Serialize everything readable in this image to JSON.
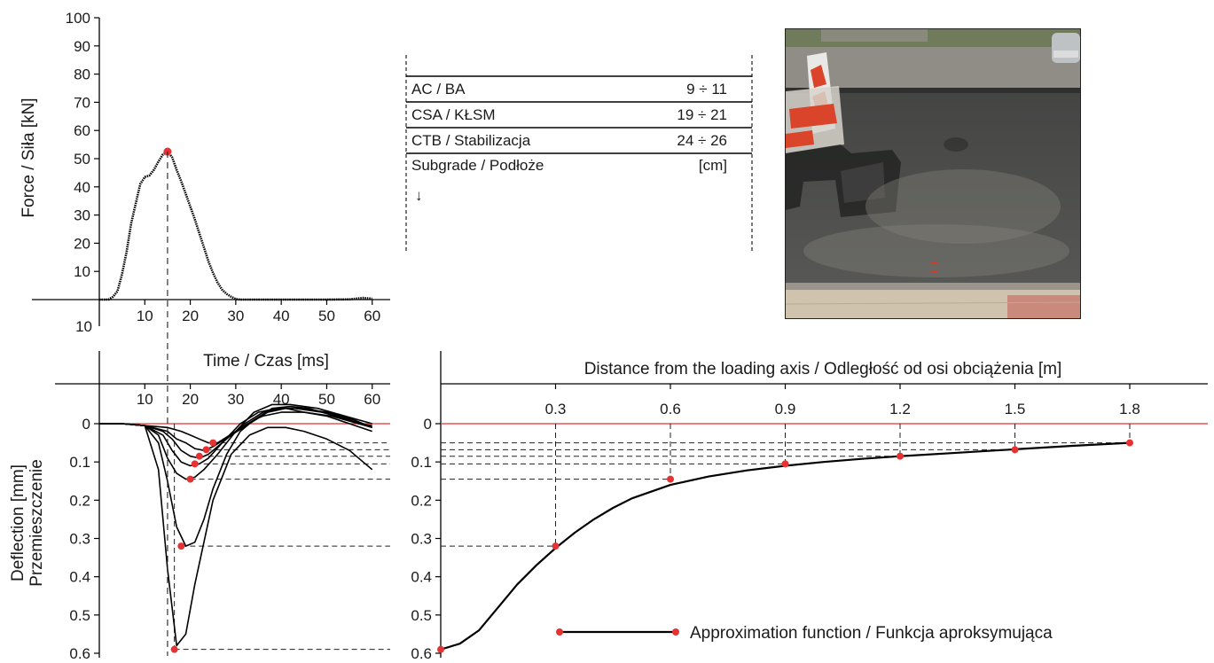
{
  "chart_data": [
    {
      "type": "line",
      "ylabel": "Force / Siła [kN]",
      "xlabel": "Time / Czas [ms]",
      "ylim": [
        -10,
        100
      ],
      "xlim": [
        0,
        62
      ],
      "yticks": [
        100,
        90,
        80,
        70,
        60,
        50,
        40,
        30,
        20,
        10
      ],
      "ytick_below": "10",
      "xticks": [
        10,
        20,
        30,
        40,
        50,
        60
      ],
      "series": [
        {
          "x": [
            0,
            2,
            3,
            4,
            5,
            6,
            7,
            8,
            9,
            10,
            11,
            12,
            13,
            14,
            15,
            16,
            17,
            18,
            19,
            20,
            21,
            22,
            23,
            24,
            25,
            26,
            27,
            28,
            29,
            30,
            31,
            32,
            35,
            40,
            45,
            50,
            55,
            58,
            60
          ],
          "y": [
            0,
            0,
            1,
            3,
            9,
            17,
            27,
            34,
            41,
            43.5,
            44,
            46,
            49,
            51.5,
            52.5,
            50.5,
            46,
            42,
            37.5,
            33,
            28.5,
            23.5,
            18.5,
            13.5,
            9.5,
            6,
            3.5,
            2,
            1,
            0.2,
            0,
            0,
            0,
            0,
            0,
            0,
            0.1,
            0.6,
            0.3
          ]
        }
      ],
      "peak": {
        "x": 15,
        "y": 52.5
      }
    },
    {
      "type": "line",
      "ylabel_line1": "Deflection [mm]",
      "ylabel_line2": "Przemieszczenie",
      "ylim": [
        0.6,
        -0.03
      ],
      "xlim": [
        0,
        62
      ],
      "yticks": [
        "0",
        "0.1",
        "0.2",
        "0.3",
        "0.4",
        "0.5",
        "0.6"
      ],
      "xticks": [
        10,
        20,
        30,
        40,
        50,
        60
      ],
      "series": [
        {
          "x": [
            0,
            5,
            10,
            13,
            15,
            17,
            19,
            21,
            25,
            29,
            33,
            37,
            41,
            45,
            50,
            55,
            60
          ],
          "y": [
            0,
            0,
            0.005,
            0.12,
            0.38,
            0.58,
            0.55,
            0.42,
            0.2,
            0.08,
            0.03,
            0.01,
            0.01,
            0.02,
            0.04,
            0.07,
            0.12
          ]
        },
        {
          "x": [
            0,
            5,
            10,
            13,
            15,
            17,
            19,
            21,
            23,
            25,
            28,
            31,
            34,
            36,
            40,
            45,
            50,
            55,
            60
          ],
          "y": [
            0,
            0,
            0.005,
            0.05,
            0.15,
            0.27,
            0.32,
            0.31,
            0.25,
            0.17,
            0.08,
            0.02,
            -0.01,
            -0.02,
            -0.03,
            -0.03,
            -0.02,
            0,
            0.02
          ]
        },
        {
          "x": [
            0,
            5,
            10,
            13,
            15,
            17,
            19,
            21,
            23,
            26,
            30,
            34,
            38,
            42,
            48,
            54,
            60
          ],
          "y": [
            0,
            0,
            0.005,
            0.03,
            0.09,
            0.13,
            0.145,
            0.14,
            0.12,
            0.08,
            0.02,
            -0.03,
            -0.05,
            -0.05,
            -0.04,
            -0.02,
            0
          ]
        },
        {
          "x": [
            0,
            5,
            10,
            14,
            16,
            18,
            20,
            22,
            24,
            27,
            31,
            35,
            39,
            43,
            49,
            55,
            60
          ],
          "y": [
            0,
            0,
            0.005,
            0.03,
            0.07,
            0.1,
            0.11,
            0.105,
            0.09,
            0.05,
            0,
            -0.03,
            -0.04,
            -0.04,
            -0.03,
            -0.01,
            0.01
          ]
        },
        {
          "x": [
            0,
            5,
            10,
            14,
            16,
            18,
            20,
            22,
            24,
            28,
            32,
            36,
            40,
            44,
            50,
            56,
            60
          ],
          "y": [
            0,
            0,
            0.005,
            0.02,
            0.04,
            0.07,
            0.085,
            0.09,
            0.08,
            0.04,
            0,
            -0.03,
            -0.04,
            -0.04,
            -0.03,
            -0.01,
            0.01
          ]
        },
        {
          "x": [
            0,
            5,
            10,
            15,
            17,
            19,
            21,
            23,
            25,
            29,
            33,
            37,
            41,
            45,
            51,
            57,
            60
          ],
          "y": [
            0,
            0,
            0.005,
            0.02,
            0.04,
            0.05,
            0.065,
            0.07,
            0.06,
            0.03,
            0,
            -0.03,
            -0.04,
            -0.03,
            -0.02,
            0,
            0.01
          ]
        },
        {
          "x": [
            0,
            5,
            10,
            15,
            18,
            20,
            22,
            24,
            26,
            30,
            34,
            38,
            42,
            46,
            52,
            57,
            60
          ],
          "y": [
            0,
            0,
            0.005,
            0.01,
            0.02,
            0.03,
            0.04,
            0.05,
            0.05,
            0.02,
            -0.01,
            -0.04,
            -0.045,
            -0.04,
            -0.02,
            0,
            0.005
          ]
        }
      ],
      "peaks": [
        {
          "x": 16.5,
          "y": 0.59
        },
        {
          "x": 18,
          "y": 0.32
        },
        {
          "x": 20,
          "y": 0.145
        },
        {
          "x": 21,
          "y": 0.105
        },
        {
          "x": 22,
          "y": 0.085
        },
        {
          "x": 23.5,
          "y": 0.068
        },
        {
          "x": 25,
          "y": 0.05
        }
      ],
      "load_peak_time": 15
    },
    {
      "type": "scatter",
      "title": "Distance from the loading axis / Odległość od osi obciążenia [m]",
      "xlim": [
        0,
        2.07
      ],
      "ylim": [
        0.6,
        -0.03
      ],
      "xticks": [
        "0.3",
        "0.6",
        "0.9",
        "1.2",
        "1.5",
        "1.8"
      ],
      "yticks": [
        "0",
        "0.1",
        "0.2",
        "0.3",
        "0.4",
        "0.5",
        "0.6"
      ],
      "points": [
        {
          "x": 0.0,
          "y": 0.59
        },
        {
          "x": 0.3,
          "y": 0.32
        },
        {
          "x": 0.6,
          "y": 0.145
        },
        {
          "x": 0.9,
          "y": 0.105
        },
        {
          "x": 1.2,
          "y": 0.085
        },
        {
          "x": 1.5,
          "y": 0.068
        },
        {
          "x": 1.8,
          "y": 0.05
        }
      ],
      "fit": {
        "x": [
          0,
          0.05,
          0.1,
          0.15,
          0.2,
          0.25,
          0.3,
          0.35,
          0.4,
          0.45,
          0.5,
          0.6,
          0.7,
          0.8,
          0.9,
          1.0,
          1.1,
          1.2,
          1.35,
          1.5,
          1.65,
          1.8
        ],
        "y": [
          0.59,
          0.575,
          0.54,
          0.48,
          0.42,
          0.37,
          0.325,
          0.285,
          0.25,
          0.22,
          0.195,
          0.16,
          0.138,
          0.122,
          0.11,
          0.1,
          0.092,
          0.085,
          0.076,
          0.067,
          0.058,
          0.05
        ]
      },
      "legend": "Approximation function / Funkcja aproksymująca"
    }
  ],
  "layers": [
    {
      "name": "AC / BA",
      "thickness": "9 ÷ 11"
    },
    {
      "name": "CSA / KŁSM",
      "thickness": "19 ÷ 21"
    },
    {
      "name": "CTB / Stabilizacja",
      "thickness": "24 ÷ 26"
    },
    {
      "name": "Subgrade / Podłoże",
      "thickness": "[cm]"
    }
  ],
  "depth_arrow": "↓",
  "colors": {
    "marker": "#e63232",
    "zero_line": "#e63232",
    "curve": "#000000",
    "dashed": "#222222"
  }
}
